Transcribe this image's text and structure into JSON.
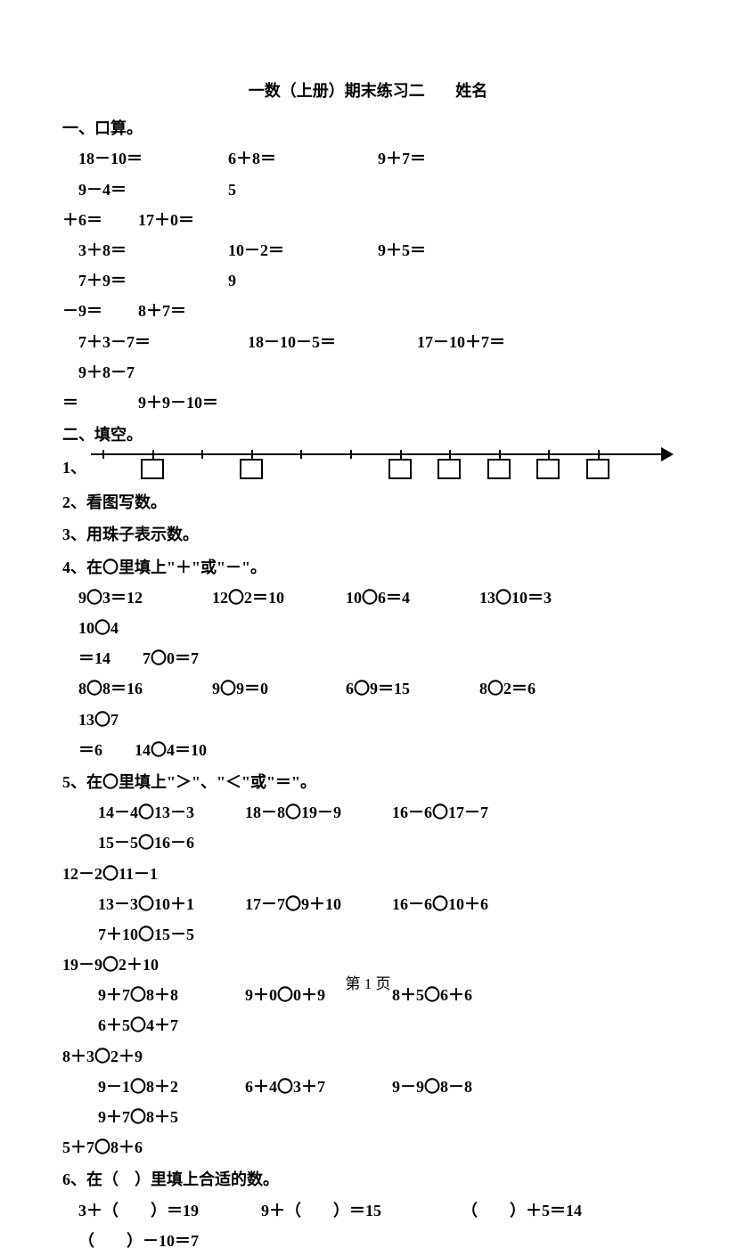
{
  "title": {
    "main": "一数（上册）期末练习二",
    "name_label": "姓名"
  },
  "section1": {
    "heading": "一、口算。",
    "row1": [
      "18－10＝",
      "6＋8＝",
      "9＋7＝",
      "9－4＝",
      "5"
    ],
    "row1_cont_prefix": "＋6＝",
    "row1_cont_tail": "17＋0＝",
    "row2": [
      "3＋8＝",
      "10－2＝",
      "9＋5＝",
      "7＋9＝",
      "9"
    ],
    "row2_cont_prefix": "－9＝",
    "row2_cont_tail": "8＋7＝",
    "row3": [
      "7＋3－7＝",
      "18－10－5＝",
      "17－10＋7＝",
      "9＋8－7"
    ],
    "row3_cont_prefix": "＝",
    "row3_cont_tail": "9＋9－10＝"
  },
  "section2": {
    "heading": "二、填空。",
    "q1_label": "1、",
    "number_line": {
      "tick_positions_pct": [
        2,
        10.5,
        19,
        27.5,
        36,
        44.5,
        53,
        61.5,
        70,
        78.5,
        87
      ],
      "box_positions_pct": [
        8.5,
        25.5,
        51,
        59.5,
        68,
        76.5,
        85
      ]
    },
    "q2": "2、看图写数。",
    "q3": "3、用珠子表示数。",
    "q4_heading": "4、在〇里填上\"＋\"或\"－\"。",
    "q4_rows": [
      [
        "9〇3＝12",
        "12〇2＝10",
        "10〇6＝4",
        "13〇10＝3",
        "10〇4"
      ],
      [
        "8〇8＝16",
        "9〇9＝0",
        "6〇9＝15",
        "8〇2＝6",
        "13〇7"
      ]
    ],
    "q4_cont": [
      "＝14　　7〇0＝7",
      "＝6　　14〇4＝10"
    ],
    "q5_heading": "5、在〇里填上\"＞\"、\"＜\"或\"＝\"。",
    "q5_rows": [
      [
        "14－4〇13－3",
        "18－8〇19－9",
        "16－6〇17－7",
        "15－5〇16－6"
      ],
      [
        "13－3〇10＋1",
        "17－7〇9＋10",
        "16－6〇10＋6",
        "7＋10〇15－5"
      ],
      [
        "9＋7〇8＋8",
        "9＋0〇0＋9",
        "8＋5〇6＋6",
        "6＋5〇4＋7"
      ],
      [
        "9－1〇8＋2",
        "6＋4〇3＋7",
        "9－9〇8－8",
        "9＋7〇8＋5"
      ]
    ],
    "q5_cont": [
      "12－2〇11－1",
      "19－9〇2＋10",
      "8＋3〇2＋9",
      "5＋7〇8＋6"
    ],
    "q6_heading": "6、在（　）里填上合适的数。",
    "q6_row1": [
      "3＋（　　）＝19",
      "9＋（　　）＝15",
      "（　　）＋5＝14"
    ],
    "q6_cont": "（　　）－10＝7"
  },
  "footer": "第 1 页"
}
